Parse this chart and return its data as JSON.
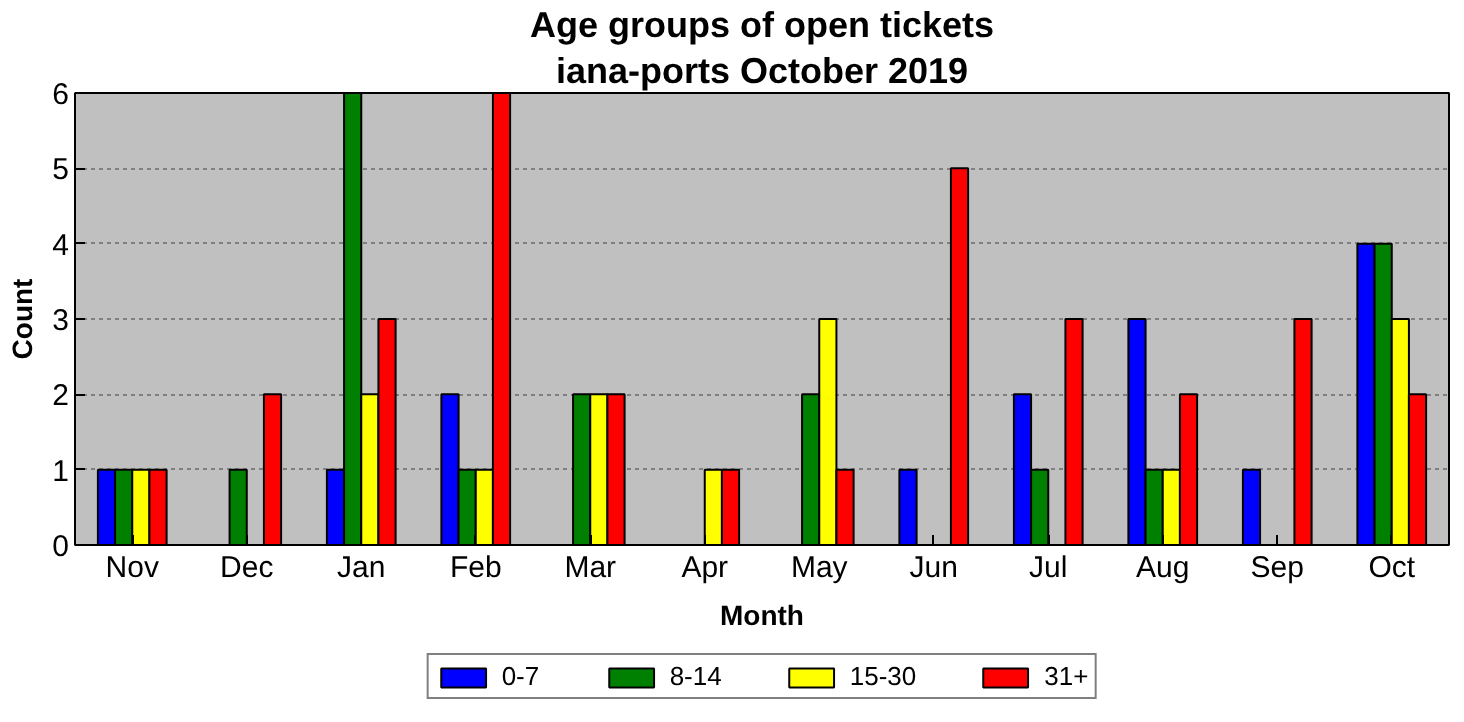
{
  "chart_data": {
    "type": "bar",
    "title": "Age groups of open tickets",
    "subtitle": "iana-ports October 2019",
    "xlabel": "Month",
    "ylabel": "Count",
    "categories": [
      "Nov",
      "Dec",
      "Jan",
      "Feb",
      "Mar",
      "Apr",
      "May",
      "Jun",
      "Jul",
      "Aug",
      "Sep",
      "Oct"
    ],
    "series": [
      {
        "name": "0-7",
        "color": "#0000ff",
        "values": [
          1,
          0,
          1,
          2,
          0,
          0,
          0,
          1,
          2,
          3,
          1,
          4
        ]
      },
      {
        "name": "8-14",
        "color": "#008000",
        "values": [
          1,
          1,
          6,
          1,
          2,
          0,
          2,
          0,
          1,
          1,
          0,
          4
        ]
      },
      {
        "name": "15-30",
        "color": "#ffff00",
        "values": [
          1,
          0,
          2,
          1,
          2,
          1,
          3,
          0,
          0,
          1,
          0,
          3
        ]
      },
      {
        "name": "31+",
        "color": "#ff0000",
        "values": [
          1,
          2,
          3,
          6,
          2,
          1,
          1,
          5,
          3,
          2,
          3,
          2
        ]
      }
    ],
    "ylim": [
      0,
      6
    ],
    "yticks": [
      0,
      1,
      2,
      3,
      4,
      5,
      6
    ],
    "grid": "y",
    "legend": "bottom"
  }
}
